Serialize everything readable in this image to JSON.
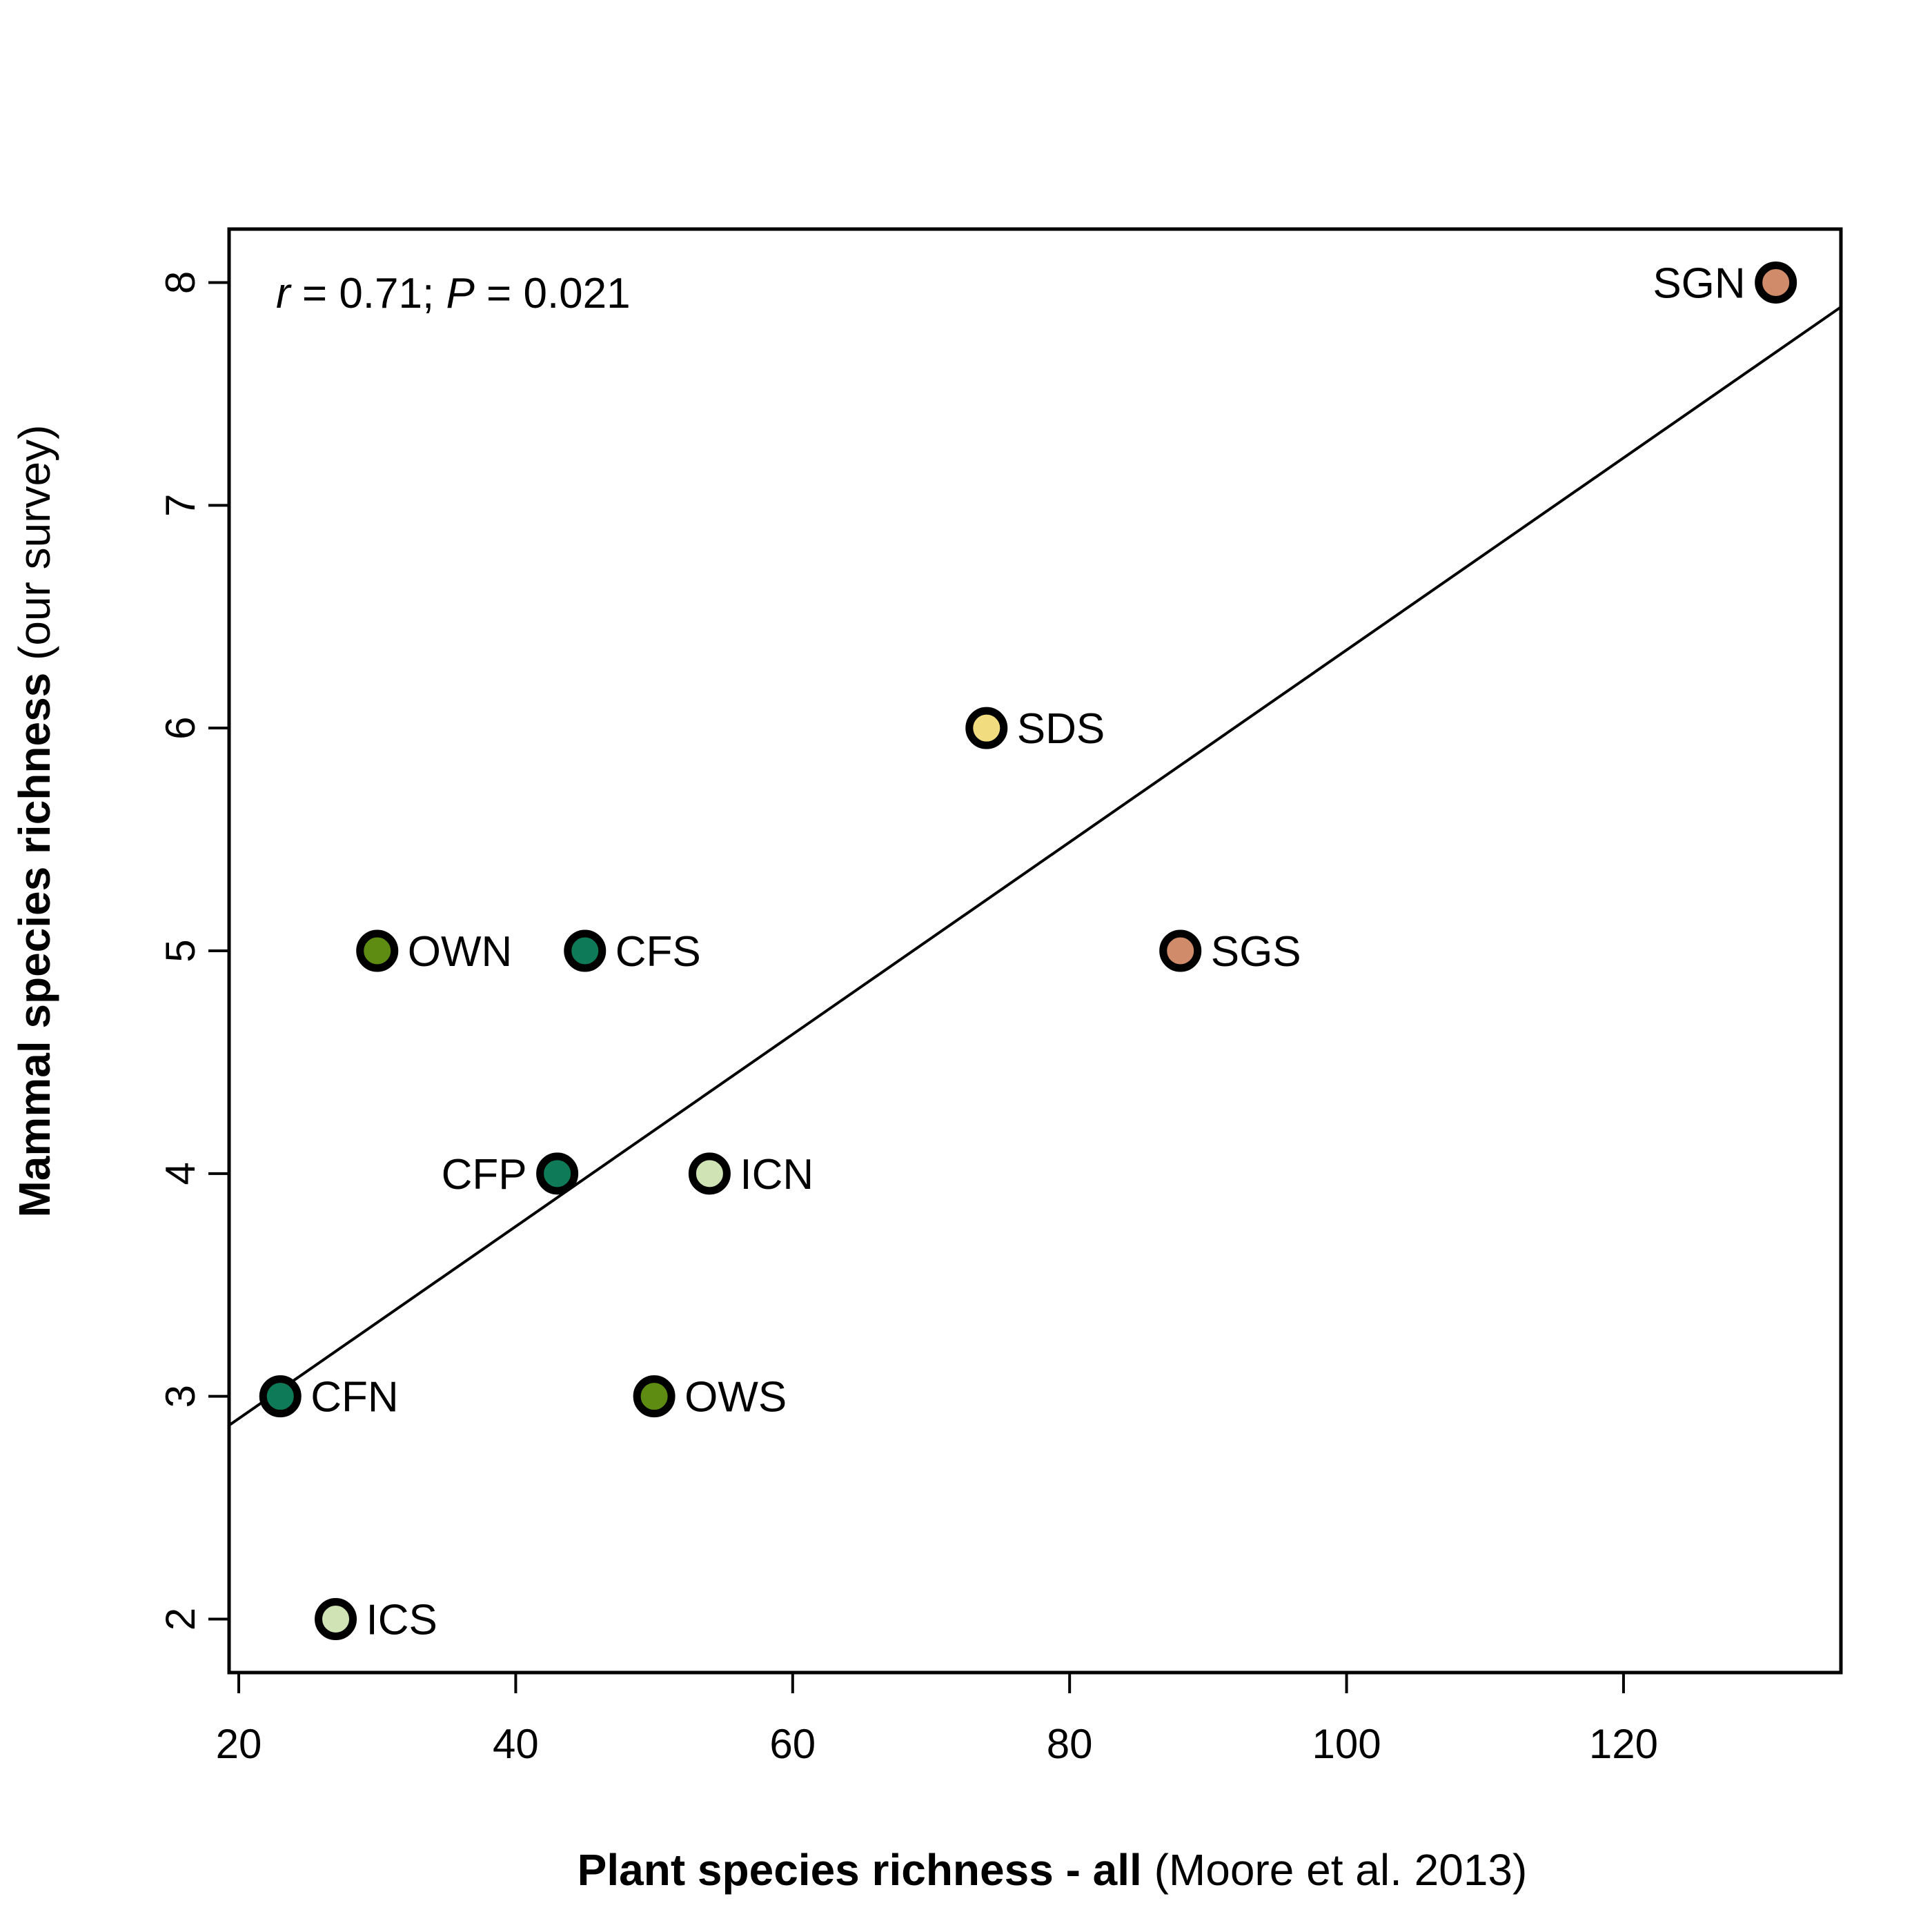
{
  "chart_data": {
    "type": "scatter",
    "xlabel_bold": "Plant species richness - all",
    "xlabel_normal": "(Moore et al. 2013)",
    "ylabel_bold": "Mammal species richness",
    "ylabel_normal": "(our survey)",
    "xlim": [
      19.3,
      135.7
    ],
    "ylim": [
      1.76,
      8.24
    ],
    "xticks": [
      20,
      40,
      60,
      80,
      100,
      120
    ],
    "yticks": [
      2,
      3,
      4,
      5,
      6,
      7,
      8
    ],
    "grid": false,
    "annotation": {
      "r_symbol": "r",
      "r_value": "= 0.71;",
      "p_symbol": "P",
      "p_value": "= 0.021"
    },
    "fit_line": {
      "x": [
        19.3,
        135.7
      ],
      "y": [
        2.87,
        7.89
      ]
    },
    "points": [
      {
        "label": "SGN",
        "x": 131,
        "y": 8,
        "color": "#d08b6a",
        "label_side": "left"
      },
      {
        "label": "SDS",
        "x": 74,
        "y": 6,
        "color": "#f2dc80",
        "label_side": "right"
      },
      {
        "label": "OWN",
        "x": 30,
        "y": 5,
        "color": "#5e8c12",
        "label_side": "right"
      },
      {
        "label": "CFS",
        "x": 45,
        "y": 5,
        "color": "#0e7a58",
        "label_side": "right"
      },
      {
        "label": "SGS",
        "x": 88,
        "y": 5,
        "color": "#d08b6a",
        "label_side": "right"
      },
      {
        "label": "CFP",
        "x": 43,
        "y": 4,
        "color": "#0e7a58",
        "label_side": "left"
      },
      {
        "label": "ICN",
        "x": 54,
        "y": 4,
        "color": "#cfe3b4",
        "label_side": "right"
      },
      {
        "label": "CFN",
        "x": 23,
        "y": 3,
        "color": "#0e7a58",
        "label_side": "right"
      },
      {
        "label": "OWS",
        "x": 50,
        "y": 3,
        "color": "#5e8c12",
        "label_side": "right"
      },
      {
        "label": "ICS",
        "x": 27,
        "y": 2,
        "color": "#cfe3b4",
        "label_side": "right"
      }
    ]
  }
}
